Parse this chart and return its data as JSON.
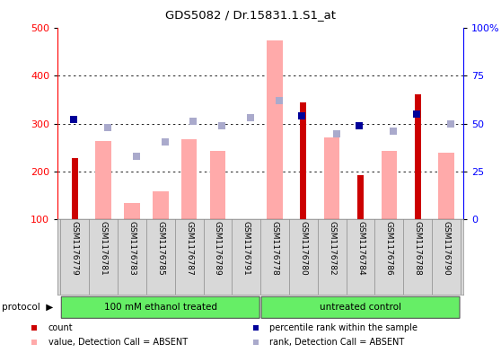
{
  "title": "GDS5082 / Dr.15831.1.S1_at",
  "samples": [
    "GSM1176779",
    "GSM1176781",
    "GSM1176783",
    "GSM1176785",
    "GSM1176787",
    "GSM1176789",
    "GSM1176791",
    "GSM1176778",
    "GSM1176780",
    "GSM1176782",
    "GSM1176784",
    "GSM1176786",
    "GSM1176788",
    "GSM1176790"
  ],
  "count_values": [
    228,
    0,
    0,
    0,
    0,
    0,
    0,
    0,
    345,
    0,
    192,
    0,
    362,
    0
  ],
  "percentile_values": [
    52,
    0,
    0,
    0,
    0,
    0,
    0,
    0,
    54,
    0,
    49,
    0,
    55,
    0
  ],
  "value_absent": [
    0,
    264,
    134,
    157,
    268,
    243,
    0,
    475,
    0,
    270,
    0,
    243,
    0,
    239
  ],
  "rank_absent": [
    0,
    292,
    232,
    261,
    305,
    296,
    312,
    349,
    0,
    278,
    0,
    284,
    0,
    300
  ],
  "groups": [
    {
      "label": "100 mM ethanol treated",
      "start": 0,
      "end": 7
    },
    {
      "label": "untreated control",
      "start": 7,
      "end": 14
    }
  ],
  "ylim_left": [
    100,
    500
  ],
  "ylim_right": [
    0,
    100
  ],
  "left_ticks": [
    100,
    200,
    300,
    400,
    500
  ],
  "right_ticks": [
    0,
    25,
    50,
    75,
    100
  ],
  "right_tick_labels": [
    "0",
    "25",
    "50",
    "75",
    "100%"
  ],
  "count_color": "#cc0000",
  "percentile_color": "#000099",
  "value_absent_color": "#ffaaaa",
  "rank_absent_color": "#aaaacc",
  "bg_color": "#d8d8d8",
  "group_color": "#66ee66",
  "grid_color": "#000000",
  "legend_items": [
    {
      "color": "#cc0000",
      "label": "count"
    },
    {
      "color": "#000099",
      "label": "percentile rank within the sample"
    },
    {
      "color": "#ffaaaa",
      "label": "value, Detection Call = ABSENT"
    },
    {
      "color": "#aaaacc",
      "label": "rank, Detection Call = ABSENT"
    }
  ]
}
